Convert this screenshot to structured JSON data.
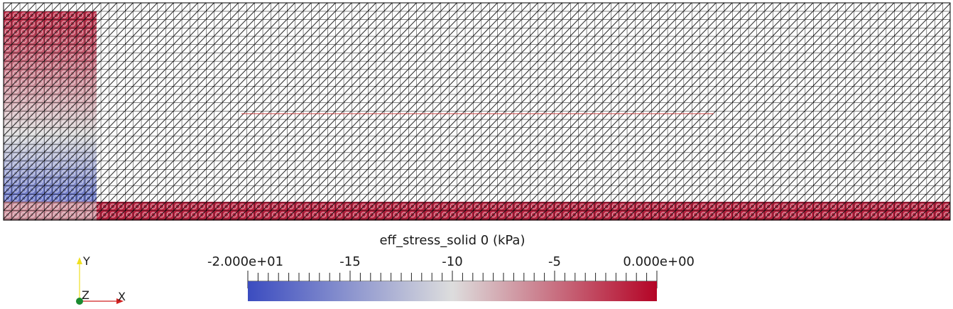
{
  "render": {
    "colormap": "Cool to Warm",
    "colors": {
      "low": "#3b4cc0",
      "mid": "#dddddd",
      "high": "#b40426",
      "mesh_lines": "#000000",
      "inclusion_line": "#d04040",
      "background": "#ffffff"
    }
  },
  "color_legend": {
    "title": "eff_stress_solid 0 (kPa)",
    "range": [
      -20,
      0
    ],
    "tick_labels": [
      {
        "value": -20,
        "text": "-2.000e+01"
      },
      {
        "value": -15,
        "text": "-15"
      },
      {
        "value": -10,
        "text": "-10"
      },
      {
        "value": -5,
        "text": "-5"
      },
      {
        "value": 0,
        "text": "0.000e+00"
      }
    ]
  },
  "orientation_axes": {
    "y_label": "Y",
    "z_label": "Z",
    "x_label": "X",
    "colors": {
      "y": "#f0e020",
      "z": "#1a8a30",
      "x": "#d02020"
    }
  }
}
